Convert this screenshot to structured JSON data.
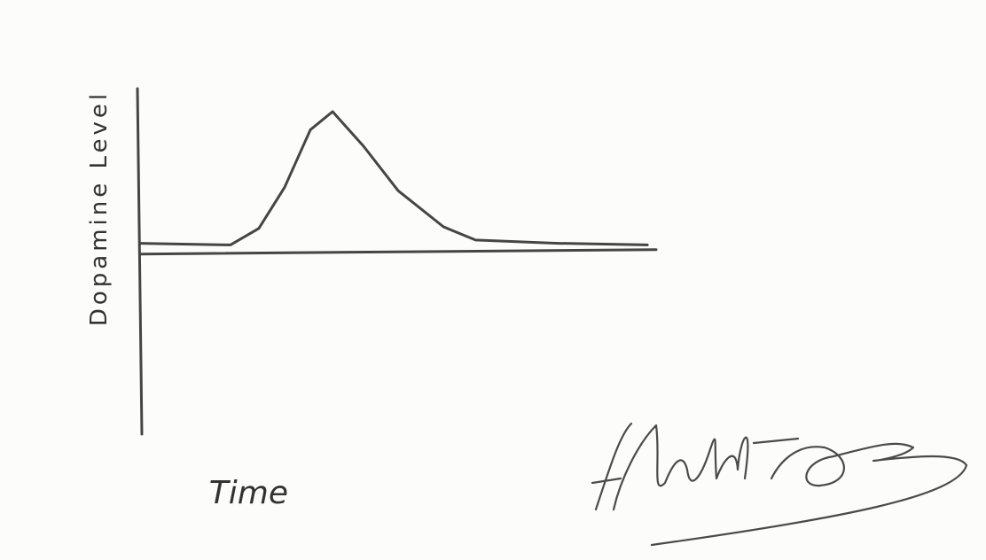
{
  "chart_data": {
    "type": "line",
    "x_label": "Time",
    "y_label": "Dopamine Level",
    "x": [
      0,
      1.75,
      2.3,
      2.8,
      3.3,
      3.73,
      4.33,
      5.0,
      5.88,
      6.5,
      8.1,
      9.83
    ],
    "series": [
      {
        "color": "#454545",
        "values": [
          0.6,
          0.5,
          1.5,
          4,
          7.5,
          8.6,
          6.5,
          3.8,
          1.6,
          0.8,
          0.6,
          0.5
        ]
      }
    ],
    "xlim": [
      0,
      10
    ],
    "ylim": [
      -11,
      10
    ]
  }
}
